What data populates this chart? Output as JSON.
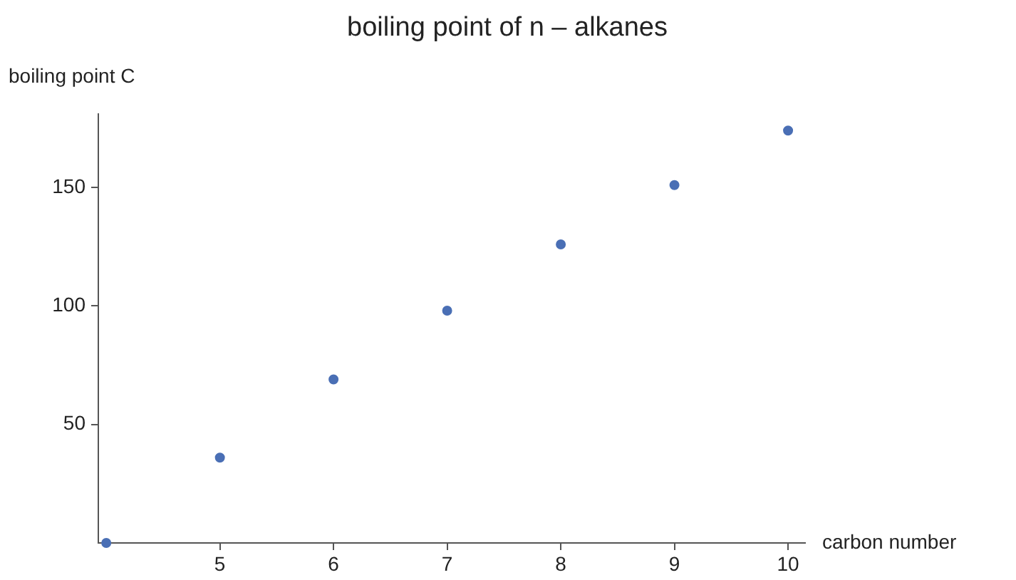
{
  "chart_data": {
    "type": "scatter",
    "title": "boiling point of n – alkanes",
    "xlabel": "carbon number",
    "ylabel": "boiling point C",
    "x": [
      4,
      5,
      6,
      7,
      8,
      9,
      10
    ],
    "series": [
      {
        "color": "#4a6fb5",
        "values": [
          0,
          36,
          69,
          98,
          126,
          151,
          174
        ]
      }
    ],
    "xlim": [
      3.93,
      10.15
    ],
    "ylim": [
      0,
      181
    ],
    "xticks": [
      5,
      6,
      7,
      8,
      9,
      10
    ],
    "yticks": [
      50,
      100,
      150
    ],
    "grid": false,
    "legend": false,
    "marker": "circle"
  }
}
